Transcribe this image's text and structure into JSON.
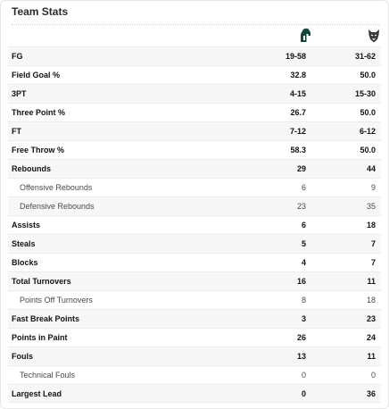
{
  "card": {
    "title": "Team Stats"
  },
  "teams": {
    "home_logo_icon": "spartan-helmet-logo",
    "away_logo_icon": "wolf-head-logo"
  },
  "rows": [
    {
      "label": "FG",
      "home": "19-58",
      "away": "31-62",
      "sub": false
    },
    {
      "label": "Field Goal %",
      "home": "32.8",
      "away": "50.0",
      "sub": false
    },
    {
      "label": "3PT",
      "home": "4-15",
      "away": "15-30",
      "sub": false
    },
    {
      "label": "Three Point %",
      "home": "26.7",
      "away": "50.0",
      "sub": false
    },
    {
      "label": "FT",
      "home": "7-12",
      "away": "6-12",
      "sub": false
    },
    {
      "label": "Free Throw %",
      "home": "58.3",
      "away": "50.0",
      "sub": false
    },
    {
      "label": "Rebounds",
      "home": "29",
      "away": "44",
      "sub": false
    },
    {
      "label": "Offensive Rebounds",
      "home": "6",
      "away": "9",
      "sub": true
    },
    {
      "label": "Defensive Rebounds",
      "home": "23",
      "away": "35",
      "sub": true
    },
    {
      "label": "Assists",
      "home": "6",
      "away": "18",
      "sub": false
    },
    {
      "label": "Steals",
      "home": "5",
      "away": "7",
      "sub": false
    },
    {
      "label": "Blocks",
      "home": "4",
      "away": "7",
      "sub": false
    },
    {
      "label": "Total Turnovers",
      "home": "16",
      "away": "11",
      "sub": false
    },
    {
      "label": "Points Off Turnovers",
      "home": "8",
      "away": "18",
      "sub": true
    },
    {
      "label": "Fast Break Points",
      "home": "3",
      "away": "23",
      "sub": false
    },
    {
      "label": "Points in Paint",
      "home": "26",
      "away": "24",
      "sub": false
    },
    {
      "label": "Fouls",
      "home": "13",
      "away": "11",
      "sub": false
    },
    {
      "label": "Technical Fouls",
      "home": "0",
      "away": "0",
      "sub": true
    },
    {
      "label": "Largest Lead",
      "home": "0",
      "away": "36",
      "sub": false
    }
  ]
}
